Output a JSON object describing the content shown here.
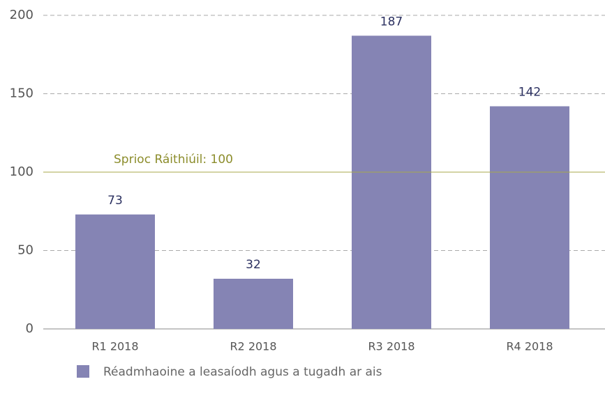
{
  "chart_data": {
    "type": "bar",
    "categories": [
      "R1 2018",
      "R2 2018",
      "R3 2018",
      "R4 2018"
    ],
    "series": [
      {
        "name": "Réadmhaoine a leasaíodh agus a tugadh ar ais",
        "color": "#8584b4",
        "values": [
          73,
          32,
          187,
          142
        ]
      }
    ],
    "ylim": [
      0,
      200
    ],
    "yticks": [
      0,
      50,
      100,
      150,
      200
    ],
    "grid": true,
    "reference_line": {
      "value": 100,
      "label": "Sprioc Ráithiúil: 100",
      "color": "#a7a84b"
    }
  }
}
